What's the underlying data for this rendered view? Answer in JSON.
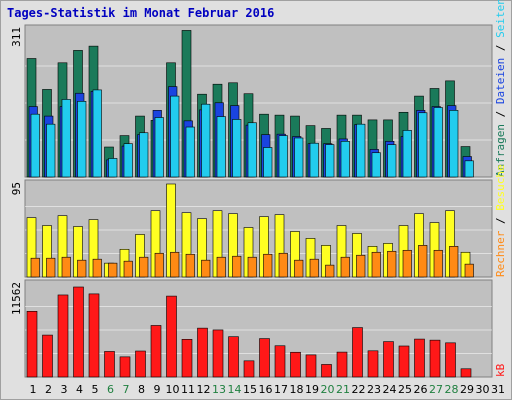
{
  "title": "Tages-Statistik im Monat Februar 2016",
  "colors": {
    "anfragen": "#1a7a5a",
    "dateien": "#1a44e0",
    "seiten": "#22ccee",
    "besuche": "#ffff22",
    "rechner": "#ff8a14",
    "kb": "#ff1818",
    "weekend_label": "#208040",
    "weekday_label": "#000000",
    "plot_bg": "#c0c0c0"
  },
  "chart_data": [
    {
      "type": "bar",
      "panel": "top",
      "ymax_label": "311",
      "ymax": 311,
      "legend": [
        {
          "text": "Anfragen",
          "color": "#1a7a5a"
        },
        {
          "text": "Dateien",
          "color": "#1a44e0"
        },
        {
          "text": "Seiten",
          "color": "#22ccee"
        }
      ],
      "legend_separator": " / ",
      "categories": [
        1,
        2,
        3,
        4,
        5,
        6,
        7,
        8,
        9,
        10,
        11,
        12,
        13,
        14,
        15,
        16,
        17,
        18,
        19,
        20,
        21,
        22,
        23,
        24,
        25,
        26,
        27,
        28,
        29,
        30,
        31
      ],
      "weekend_days": [
        6,
        7,
        13,
        14,
        20,
        21,
        27,
        28
      ],
      "series": [
        {
          "name": "Anfragen",
          "values": [
            249,
            184,
            240,
            266,
            275,
            63,
            87,
            128,
            119,
            240,
            308,
            174,
            195,
            198,
            175,
            132,
            130,
            128,
            108,
            102,
            130,
            130,
            120,
            120,
            136,
            170,
            186,
            202,
            64,
            0,
            0
          ]
        },
        {
          "name": "Dateien",
          "values": [
            148,
            128,
            148,
            176,
            180,
            36,
            65,
            89,
            140,
            190,
            118,
            141,
            156,
            150,
            109,
            89,
            90,
            85,
            70,
            70,
            80,
            110,
            58,
            75,
            85,
            140,
            148,
            150,
            43,
            0,
            0
          ]
        },
        {
          "name": "Seiten",
          "values": [
            132,
            111,
            163,
            159,
            183,
            39,
            70,
            93,
            125,
            170,
            105,
            153,
            127,
            121,
            114,
            62,
            87,
            82,
            71,
            68,
            75,
            111,
            51,
            68,
            98,
            135,
            146,
            140,
            34,
            0,
            0
          ]
        }
      ]
    },
    {
      "type": "bar",
      "panel": "middle",
      "ymax_label": "95",
      "ymax": 95,
      "legend": [
        {
          "text": "Rechner",
          "color": "#ff8a14"
        },
        {
          "text": "Besuche",
          "color": "#ffff22"
        }
      ],
      "legend_separator": " / ",
      "categories": [
        1,
        2,
        3,
        4,
        5,
        6,
        7,
        8,
        9,
        10,
        11,
        12,
        13,
        14,
        15,
        16,
        17,
        18,
        19,
        20,
        21,
        22,
        23,
        24,
        25,
        26,
        27,
        28,
        29,
        30,
        31
      ],
      "series": [
        {
          "name": "Besuche",
          "values": [
            60,
            52,
            62,
            51,
            58,
            14,
            28,
            43,
            67,
            94,
            65,
            59,
            67,
            64,
            50,
            61,
            63,
            46,
            39,
            32,
            52,
            44,
            31,
            34,
            52,
            64,
            55,
            67,
            25,
            0,
            0
          ]
        },
        {
          "name": "Rechner",
          "values": [
            19,
            19,
            20,
            17,
            18,
            14,
            16,
            20,
            24,
            25,
            23,
            17,
            20,
            21,
            20,
            23,
            24,
            17,
            18,
            12,
            20,
            22,
            25,
            26,
            27,
            32,
            27,
            31,
            13,
            0,
            0
          ]
        }
      ]
    },
    {
      "type": "bar",
      "panel": "bottom",
      "ymax_label": "11562",
      "ymax": 11562,
      "legend": [
        {
          "text": "kB",
          "color": "#ff1818"
        }
      ],
      "categories": [
        1,
        2,
        3,
        4,
        5,
        6,
        7,
        8,
        9,
        10,
        11,
        12,
        13,
        14,
        15,
        16,
        17,
        18,
        19,
        20,
        21,
        22,
        23,
        24,
        25,
        26,
        27,
        28,
        29,
        30,
        31
      ],
      "series": [
        {
          "name": "kB",
          "values": [
            8080,
            5156,
            10091,
            11070,
            10222,
            3141,
            2478,
            3195,
            6338,
            9952,
            4633,
            6010,
            5788,
            4958,
            1990,
            4725,
            3844,
            3043,
            2719,
            1542,
            3063,
            6080,
            3223,
            4355,
            3813,
            4664,
            4533,
            4203,
            1011,
            0,
            0
          ]
        }
      ]
    }
  ]
}
